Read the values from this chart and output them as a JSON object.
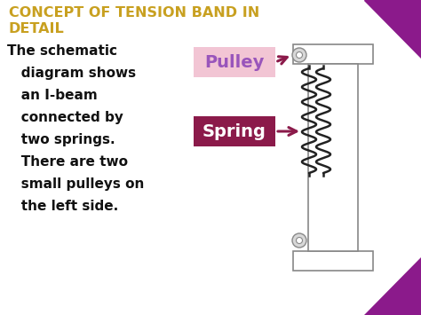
{
  "bg_color": "#ffffff",
  "title_line1": "CONCEPT OF TENSION BAND IN",
  "title_line2": "DETAIL",
  "title_color": "#c8a020",
  "body_line1": "The schematic",
  "body_line2": "   diagram shows",
  "body_line3": "   an I-beam",
  "body_line4": "   connected by",
  "body_line5": "   two springs.",
  "body_line6": "   There are two",
  "body_line7": "   small pulleys on",
  "body_line8": "   the left side.",
  "body_text_color": "#111111",
  "pulley_label": "Pulley",
  "spring_label": "Spring",
  "pulley_box_color": "#f2c5d4",
  "pulley_text_color": "#9955bb",
  "spring_box_color": "#8b1a4a",
  "spring_text_color": "#ffffff",
  "arrow_color": "#8b1a4a",
  "ibeam_edge_color": "#888888",
  "spring_coil_color": "#222222",
  "corner_purple": "#8b1a8b",
  "fig_width": 4.74,
  "fig_height": 3.55,
  "dpi": 100
}
